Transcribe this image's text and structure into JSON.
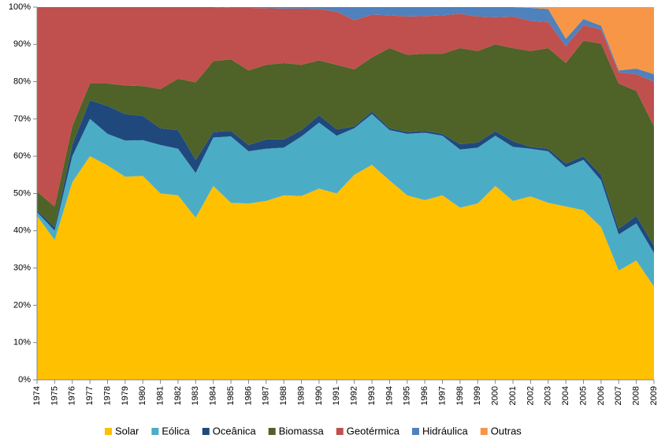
{
  "chart_data": {
    "type": "stacked_area_100",
    "categories": [
      "1974",
      "1975",
      "1976",
      "1977",
      "1978",
      "1979",
      "1980",
      "1981",
      "1982",
      "1983",
      "1984",
      "1985",
      "1986",
      "1987",
      "1988",
      "1989",
      "1990",
      "1991",
      "1992",
      "1993",
      "1994",
      "1995",
      "1996",
      "1997",
      "1998",
      "1999",
      "2000",
      "2001",
      "2002",
      "2003",
      "2004",
      "2005",
      "2006",
      "2007",
      "2008",
      "2009"
    ],
    "series": [
      {
        "name": "Solar",
        "color": "#FFC000",
        "values": [
          44,
          37.5,
          53,
          60,
          57.5,
          54.5,
          54.7,
          50,
          49.5,
          43.5,
          52,
          47.5,
          47.3,
          48,
          49.5,
          49.3,
          51.3,
          50,
          55,
          57.7,
          53.5,
          49.5,
          48.2,
          49.5,
          46.2,
          47.3,
          52,
          48,
          49.2,
          47.5,
          46.5,
          45.5,
          41,
          29.3,
          32,
          25
        ]
      },
      {
        "name": "Eólica",
        "color": "#4BACC6",
        "values": [
          1,
          2.5,
          7,
          10,
          8.5,
          9.7,
          9.6,
          13,
          12.5,
          12,
          13,
          17.8,
          14,
          14,
          12.8,
          16,
          17.7,
          15.5,
          12.5,
          13.6,
          13.5,
          16.5,
          18.1,
          16,
          15.6,
          15,
          13.5,
          14.5,
          12.8,
          13.8,
          10.5,
          13.5,
          12.5,
          9.7,
          10,
          9
        ]
      },
      {
        "name": "Oceânica",
        "color": "#1F497D",
        "values": [
          0.5,
          1,
          3,
          5,
          7.5,
          7.1,
          6.5,
          4.5,
          5,
          3.5,
          1.5,
          1.5,
          1.7,
          2.5,
          2.2,
          1.7,
          2,
          1.7,
          0.5,
          0.7,
          0.5,
          0.5,
          0.5,
          0.5,
          1.4,
          1.4,
          1.2,
          1.5,
          0.5,
          0.7,
          1,
          1,
          1.5,
          1.5,
          2,
          2
        ]
      },
      {
        "name": "Biomassa",
        "color": "#4F6228",
        "values": [
          5,
          5.5,
          5,
          4.5,
          6,
          7.7,
          8,
          10.5,
          13.8,
          20.8,
          19,
          19.2,
          20,
          20,
          20.5,
          17.5,
          14.7,
          17.3,
          15.3,
          14.5,
          21.5,
          20.7,
          20.7,
          21.5,
          25.8,
          24.5,
          23.3,
          25,
          25.7,
          27,
          27,
          31,
          35.2,
          39,
          33.5,
          32
        ]
      },
      {
        "name": "Geotérmica",
        "color": "#C0504D",
        "values": [
          49.5,
          53.5,
          32,
          20.5,
          20.5,
          21,
          21.2,
          22,
          19.2,
          20.2,
          14.5,
          13.8,
          16.8,
          15.2,
          14.6,
          15.1,
          13.8,
          14.3,
          13.2,
          11.5,
          8.8,
          10.3,
          10.1,
          10.3,
          9.2,
          9.3,
          7.3,
          8.5,
          8.1,
          7,
          4.5,
          4.2,
          3.8,
          3,
          4.5,
          12
        ]
      },
      {
        "name": "Hidráulica",
        "color": "#4F81BD",
        "values": [
          0,
          0,
          0,
          0,
          0,
          0,
          0,
          0,
          0,
          0,
          0,
          0.2,
          0.2,
          0.3,
          0.4,
          0.4,
          0.5,
          1.2,
          3.5,
          2,
          2.2,
          2.5,
          2.4,
          2.2,
          1.8,
          2.5,
          2.7,
          2.5,
          3.5,
          3.5,
          2,
          1.6,
          1,
          0.5,
          1.5,
          2
        ]
      },
      {
        "name": "Outras",
        "color": "#F79646",
        "values": [
          0,
          0,
          0,
          0,
          0,
          0,
          0,
          0,
          0,
          0,
          0,
          0,
          0,
          0,
          0,
          0,
          0,
          0,
          0,
          0,
          0,
          0,
          0,
          0,
          0,
          0,
          0,
          0,
          0.2,
          0.5,
          8.5,
          3.2,
          5,
          17,
          16.5,
          18
        ]
      }
    ],
    "ylim": [
      0,
      100
    ],
    "yticks": [
      {
        "value": 0,
        "label": "0%"
      },
      {
        "value": 10,
        "label": "10%"
      },
      {
        "value": 20,
        "label": "20%"
      },
      {
        "value": 30,
        "label": "30%"
      },
      {
        "value": 40,
        "label": "40%"
      },
      {
        "value": 50,
        "label": "50%"
      },
      {
        "value": 60,
        "label": "60%"
      },
      {
        "value": 70,
        "label": "70%"
      },
      {
        "value": 80,
        "label": "80%"
      },
      {
        "value": 90,
        "label": "90%"
      },
      {
        "value": 100,
        "label": "100%"
      }
    ],
    "grid": false,
    "legend": "bottom"
  }
}
